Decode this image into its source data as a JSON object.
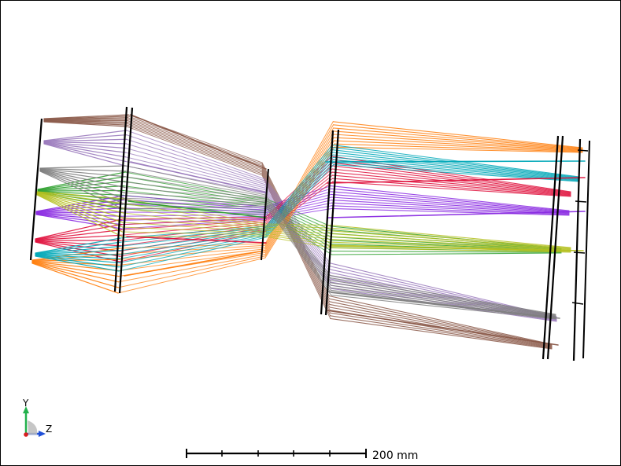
{
  "diagram": {
    "title": "",
    "axes": {
      "y_label": "Y",
      "z_label": "Z",
      "y_color": "#22b14c",
      "z_color": "#1f4fd8",
      "x_color": "#d81f1f"
    },
    "scale_bar": {
      "label": "200 mm",
      "ticks": 6
    },
    "ray_colors": [
      "#8b5a4a",
      "#9b7bbd",
      "#2ea02e",
      "#8a2be2",
      "#e0103c",
      "#ff7f0e",
      "#00a8b8",
      "#b5c020",
      "#7f7f7f"
    ]
  }
}
